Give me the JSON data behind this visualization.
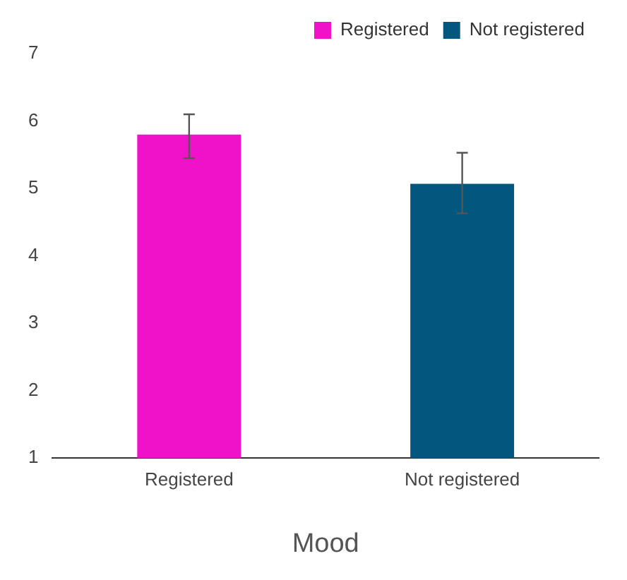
{
  "chart_data": {
    "type": "bar",
    "xlabel": "Mood",
    "categories": [
      "Registered",
      "Not registered"
    ],
    "series": [
      {
        "name": "Registered",
        "color": "#ef12c8",
        "values": [
          5.8,
          null
        ],
        "errors": [
          [
            5.45,
            6.1
          ],
          null
        ]
      },
      {
        "name": "Not registered",
        "color": "#03577f",
        "values": [
          null,
          5.07
        ],
        "errors": [
          null,
          [
            4.63,
            5.53
          ]
        ]
      }
    ],
    "ylim": [
      1,
      7
    ],
    "yticks": [
      1,
      2,
      3,
      4,
      5,
      6,
      7
    ],
    "grid": false,
    "legend": "top right"
  }
}
